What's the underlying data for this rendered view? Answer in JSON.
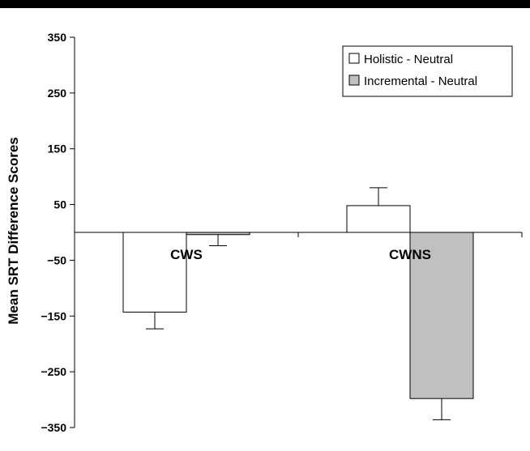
{
  "chart_data": {
    "type": "bar",
    "title": "",
    "xlabel": "",
    "ylabel": "Mean SRT Difference Scores",
    "categories": [
      "CWS",
      "CWNS"
    ],
    "series": [
      {
        "name": "Holistic - Neutral",
        "values": [
          -143,
          48
        ],
        "errors": [
          30,
          32
        ],
        "color": "#ffffff"
      },
      {
        "name": "Incremental - Neutral",
        "values": [
          -4,
          -298
        ],
        "errors": [
          20,
          38
        ],
        "color": "#c0c0c0"
      }
    ],
    "ylim": [
      -350,
      350
    ],
    "yticks": [
      350,
      250,
      150,
      50,
      -50,
      -150,
      -250,
      -350
    ],
    "grid": false,
    "legend": "top-right"
  }
}
